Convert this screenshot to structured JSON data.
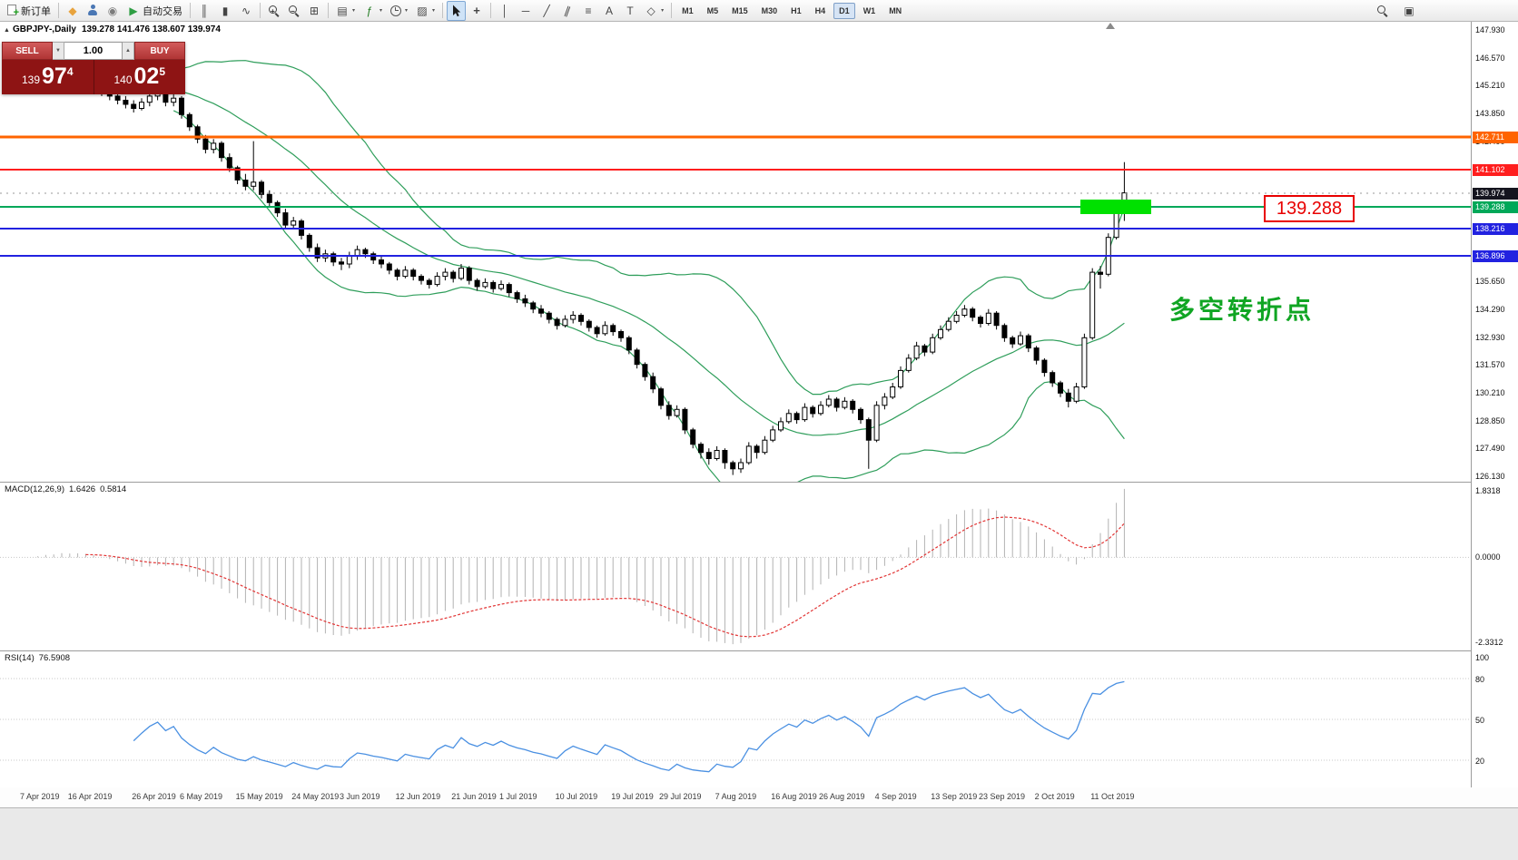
{
  "toolbar": {
    "items": [
      {
        "name": "new-order-button",
        "type": "button",
        "icon": "new-order-icon",
        "cls": "ico-neworder",
        "label": "新订单"
      },
      {
        "type": "sep"
      },
      {
        "name": "mql5-community-icon",
        "glyph": "◆",
        "color": "#e8a33d"
      },
      {
        "name": "profile-icon",
        "cls": "ico-person"
      },
      {
        "name": "news-icon",
        "glyph": "◉",
        "color": "#7d7d7d"
      },
      {
        "name": "autotrading-button",
        "type": "button",
        "glyph": "▶",
        "color": "#2f9e44",
        "label": "自动交易"
      },
      {
        "type": "sep"
      },
      {
        "name": "bar-chart-icon",
        "glyph": "║"
      },
      {
        "name": "candlestick-chart-icon",
        "glyph": "▮"
      },
      {
        "name": "line-chart-icon",
        "glyph": "∿"
      },
      {
        "type": "sep"
      },
      {
        "name": "zoom-in-icon",
        "cls": "ico-mag",
        "glyph": "+"
      },
      {
        "name": "zoom-out-icon",
        "cls": "ico-mag",
        "glyph": "−"
      },
      {
        "name": "tile-windows-icon",
        "glyph": "⊞"
      },
      {
        "type": "sep"
      },
      {
        "name": "templates-icon",
        "glyph": "▤",
        "caret": true
      },
      {
        "name": "indicators-icon",
        "glyph": "ƒ",
        "color": "#1f7a1f",
        "caret": true
      },
      {
        "name": "periods-icon",
        "cls": "ico-clock",
        "caret": true
      },
      {
        "name": "snapshot-icon",
        "glyph": "▨",
        "caret": true
      },
      {
        "type": "sep"
      },
      {
        "name": "cursor-icon",
        "svg": "cursor",
        "active": true
      },
      {
        "name": "crosshair-icon",
        "glyph": "+",
        "bold": true
      },
      {
        "type": "sep"
      },
      {
        "name": "vertical-line-icon",
        "glyph": "│"
      },
      {
        "name": "horizontal-line-icon",
        "glyph": "─"
      },
      {
        "name": "trendline-icon",
        "glyph": "╱"
      },
      {
        "name": "channel-icon",
        "glyph": "∥",
        "cls": "ico-rot"
      },
      {
        "name": "fibonacci-icon",
        "glyph": "≡"
      },
      {
        "name": "text-icon",
        "glyph": "A"
      },
      {
        "name": "label-icon",
        "glyph": "T"
      },
      {
        "name": "shapes-icon",
        "glyph": "◇",
        "caret": true
      },
      {
        "type": "sep"
      }
    ],
    "timeframes": [
      "M1",
      "M5",
      "M15",
      "M30",
      "H1",
      "H4",
      "D1",
      "W1",
      "MN"
    ],
    "active_timeframe": "D1",
    "right_items": [
      {
        "name": "search-icon",
        "cls": "ico-mag"
      },
      {
        "name": "data-window-icon",
        "glyph": "▣"
      }
    ]
  },
  "symbol_bar": {
    "marker": "▲",
    "symbol": "GBPJPY-,Daily",
    "ohlc": "139.278 141.476 138.607 139.974"
  },
  "trade_panel": {
    "sell": "SELL",
    "buy": "BUY",
    "volume": "1.00",
    "vol_down_glyph": "▼",
    "vol_up_glyph": "▲",
    "bid": {
      "prefix": "139",
      "big": "97",
      "sup": "4"
    },
    "ask": {
      "prefix": "140",
      "big": "02",
      "sup": "5"
    }
  },
  "levels": [
    {
      "price": 142.711,
      "label": "142.711",
      "color": "#ff6400",
      "width": 3
    },
    {
      "price": 141.102,
      "label": "141.102",
      "color": "#ff1e1e",
      "width": 2
    },
    {
      "price": 139.288,
      "label": "139.288",
      "color": "#00a859",
      "width": 2
    },
    {
      "price": 138.216,
      "label": "138.216",
      "color": "#2222e0",
      "width": 2
    },
    {
      "price": 136.896,
      "label": "136.896",
      "color": "#2222e0",
      "width": 2
    }
  ],
  "current_price": {
    "value": 139.974,
    "label": "139.974",
    "bg": "#15151f"
  },
  "y_ticks": [
    "147.930",
    "146.570",
    "145.210",
    "143.850",
    "142.490",
    "135.650",
    "134.290",
    "132.930",
    "131.570",
    "130.210",
    "128.850",
    "127.490",
    "126.130"
  ],
  "x_labels": [
    {
      "t": "7 Apr 2019",
      "bar": 0
    },
    {
      "t": "16 Apr 2019",
      "bar": 6
    },
    {
      "t": "26 Apr 2019",
      "bar": 14
    },
    {
      "t": "6 May 2019",
      "bar": 20
    },
    {
      "t": "15 May 2019",
      "bar": 27
    },
    {
      "t": "24 May 2019",
      "bar": 34
    },
    {
      "t": "3 Jun 2019",
      "bar": 40
    },
    {
      "t": "12 Jun 2019",
      "bar": 47
    },
    {
      "t": "21 Jun 2019",
      "bar": 54
    },
    {
      "t": "1 Jul 2019",
      "bar": 60
    },
    {
      "t": "10 Jul 2019",
      "bar": 67
    },
    {
      "t": "19 Jul 2019",
      "bar": 74
    },
    {
      "t": "29 Jul 2019",
      "bar": 80
    },
    {
      "t": "7 Aug 2019",
      "bar": 87
    },
    {
      "t": "16 Aug 2019",
      "bar": 94
    },
    {
      "t": "26 Aug 2019",
      "bar": 100
    },
    {
      "t": "4 Sep 2019",
      "bar": 107
    },
    {
      "t": "13 Sep 2019",
      "bar": 114
    },
    {
      "t": "23 Sep 2019",
      "bar": 120
    },
    {
      "t": "2 Oct 2019",
      "bar": 127
    },
    {
      "t": "11 Oct 2019",
      "bar": 134
    }
  ],
  "annotations": {
    "price_note": "139.288",
    "turning_point": "多空转折点"
  },
  "macd_panel": {
    "label": "MACD(12,26,9)",
    "value_main": "1.6426",
    "value_signal": "0.5814",
    "scale": [
      "1.8318",
      "0.0000",
      "-2.3312"
    ]
  },
  "rsi_panel": {
    "label": "RSI(14)",
    "value": "76.5908",
    "levels": [
      100,
      80,
      50,
      20
    ]
  },
  "chart_data": {
    "type": "candlestick",
    "symbol": "GBPJPY-",
    "timeframe": "Daily",
    "y_range": [
      125.87,
      148.33
    ],
    "overlays": {
      "bollinger_period": 20,
      "bollinger_dev": 2
    },
    "macd_params": [
      12,
      26,
      9
    ],
    "rsi_period": 14,
    "candles": [
      [
        145.0,
        145.4,
        144.8,
        145.2
      ],
      [
        145.2,
        145.7,
        145.0,
        145.5
      ],
      [
        145.5,
        145.6,
        145.1,
        145.3
      ],
      [
        145.3,
        145.9,
        145.2,
        145.7
      ],
      [
        145.7,
        145.9,
        145.3,
        145.5
      ],
      [
        145.5,
        146.0,
        145.4,
        145.8
      ],
      [
        145.8,
        145.9,
        145.2,
        145.4
      ],
      [
        145.4,
        145.8,
        145.2,
        145.6
      ],
      [
        145.6,
        145.7,
        145.1,
        145.3
      ],
      [
        145.3,
        145.5,
        144.9,
        145.1
      ],
      [
        145.1,
        145.2,
        144.7,
        144.9
      ],
      [
        144.9,
        145.1,
        144.5,
        144.7
      ],
      [
        144.7,
        144.9,
        144.3,
        144.5
      ],
      [
        144.5,
        144.7,
        144.1,
        144.3
      ],
      [
        144.3,
        144.5,
        143.9,
        144.1
      ],
      [
        144.1,
        144.6,
        144.0,
        144.4
      ],
      [
        144.4,
        144.9,
        144.2,
        144.7
      ],
      [
        144.7,
        145.1,
        144.5,
        144.9
      ],
      [
        144.9,
        145.0,
        144.2,
        144.4
      ],
      [
        144.4,
        144.8,
        144.2,
        144.6
      ],
      [
        144.6,
        144.7,
        143.6,
        143.8
      ],
      [
        143.8,
        143.9,
        143.0,
        143.2
      ],
      [
        143.2,
        143.3,
        142.4,
        142.6
      ],
      [
        142.6,
        142.8,
        141.9,
        142.1
      ],
      [
        142.1,
        142.6,
        141.9,
        142.4
      ],
      [
        142.4,
        142.5,
        141.5,
        141.7
      ],
      [
        141.7,
        141.9,
        141.0,
        141.2
      ],
      [
        141.2,
        141.3,
        140.4,
        140.6
      ],
      [
        140.6,
        140.9,
        140.1,
        140.3
      ],
      [
        140.3,
        142.5,
        140.1,
        140.5
      ],
      [
        140.5,
        140.6,
        139.7,
        139.9
      ],
      [
        139.9,
        140.1,
        139.3,
        139.5
      ],
      [
        139.5,
        139.6,
        138.8,
        139.0
      ],
      [
        139.0,
        139.2,
        138.2,
        138.4
      ],
      [
        138.4,
        138.8,
        138.2,
        138.6
      ],
      [
        138.6,
        138.7,
        137.7,
        137.9
      ],
      [
        137.9,
        138.0,
        137.1,
        137.3
      ],
      [
        137.3,
        137.5,
        136.6,
        136.8
      ],
      [
        136.8,
        137.2,
        136.6,
        137.0
      ],
      [
        137.0,
        137.1,
        136.4,
        136.6
      ],
      [
        136.6,
        136.8,
        136.2,
        136.5
      ],
      [
        136.5,
        137.1,
        136.3,
        136.9
      ],
      [
        136.9,
        137.4,
        136.7,
        137.2
      ],
      [
        137.2,
        137.3,
        136.8,
        137.0
      ],
      [
        137.0,
        137.1,
        136.5,
        136.7
      ],
      [
        136.7,
        136.9,
        136.3,
        136.5
      ],
      [
        136.5,
        136.6,
        136.0,
        136.2
      ],
      [
        136.2,
        136.3,
        135.7,
        135.9
      ],
      [
        135.9,
        136.4,
        135.8,
        136.2
      ],
      [
        136.2,
        136.3,
        135.7,
        135.9
      ],
      [
        135.9,
        136.0,
        135.5,
        135.7
      ],
      [
        135.7,
        135.8,
        135.3,
        135.5
      ],
      [
        135.5,
        136.1,
        135.4,
        135.9
      ],
      [
        135.9,
        136.3,
        135.7,
        136.1
      ],
      [
        136.1,
        136.2,
        135.6,
        135.8
      ],
      [
        135.8,
        136.5,
        135.7,
        136.3
      ],
      [
        136.3,
        136.4,
        135.5,
        135.7
      ],
      [
        135.7,
        135.8,
        135.2,
        135.4
      ],
      [
        135.4,
        135.8,
        135.3,
        135.6
      ],
      [
        135.6,
        135.7,
        135.1,
        135.3
      ],
      [
        135.3,
        135.7,
        135.2,
        135.5
      ],
      [
        135.5,
        135.6,
        134.9,
        135.1
      ],
      [
        135.1,
        135.2,
        134.6,
        134.8
      ],
      [
        134.8,
        135.0,
        134.4,
        134.6
      ],
      [
        134.6,
        134.7,
        134.1,
        134.3
      ],
      [
        134.3,
        134.5,
        133.9,
        134.1
      ],
      [
        134.1,
        134.2,
        133.6,
        133.8
      ],
      [
        133.8,
        133.9,
        133.3,
        133.5
      ],
      [
        133.5,
        134.0,
        133.4,
        133.8
      ],
      [
        133.8,
        134.2,
        133.6,
        134.0
      ],
      [
        134.0,
        134.1,
        133.5,
        133.7
      ],
      [
        133.7,
        133.8,
        133.2,
        133.4
      ],
      [
        133.4,
        133.5,
        132.9,
        133.1
      ],
      [
        133.1,
        133.7,
        133.0,
        133.5
      ],
      [
        133.5,
        133.6,
        133.0,
        133.2
      ],
      [
        133.2,
        133.3,
        132.7,
        132.9
      ],
      [
        132.9,
        133.0,
        132.1,
        132.3
      ],
      [
        132.3,
        132.4,
        131.4,
        131.6
      ],
      [
        131.6,
        131.7,
        130.8,
        131.0
      ],
      [
        131.0,
        131.2,
        130.2,
        130.4
      ],
      [
        130.4,
        130.5,
        129.4,
        129.6
      ],
      [
        129.6,
        129.8,
        128.9,
        129.1
      ],
      [
        129.1,
        129.6,
        129.0,
        129.4
      ],
      [
        129.4,
        129.5,
        128.2,
        128.4
      ],
      [
        128.4,
        128.5,
        127.5,
        127.7
      ],
      [
        127.7,
        127.8,
        127.0,
        127.3
      ],
      [
        127.3,
        127.5,
        126.7,
        127.0
      ],
      [
        127.0,
        127.6,
        126.9,
        127.4
      ],
      [
        127.4,
        127.5,
        126.5,
        126.8
      ],
      [
        126.8,
        126.9,
        126.2,
        126.5
      ],
      [
        126.5,
        127.0,
        126.3,
        126.8
      ],
      [
        126.8,
        127.8,
        126.7,
        127.6
      ],
      [
        127.6,
        127.7,
        127.0,
        127.3
      ],
      [
        127.3,
        128.1,
        127.2,
        127.9
      ],
      [
        127.9,
        128.6,
        127.8,
        128.4
      ],
      [
        128.4,
        129.0,
        128.3,
        128.8
      ],
      [
        128.8,
        129.4,
        128.7,
        129.2
      ],
      [
        129.2,
        129.3,
        128.7,
        128.9
      ],
      [
        128.9,
        129.7,
        128.8,
        129.5
      ],
      [
        129.5,
        129.6,
        129.0,
        129.2
      ],
      [
        129.2,
        129.8,
        129.1,
        129.6
      ],
      [
        129.6,
        130.1,
        129.5,
        129.9
      ],
      [
        129.9,
        130.0,
        129.3,
        129.5
      ],
      [
        129.5,
        130.0,
        129.4,
        129.8
      ],
      [
        129.8,
        129.9,
        129.2,
        129.4
      ],
      [
        129.4,
        129.5,
        128.7,
        128.9
      ],
      [
        128.9,
        129.0,
        126.5,
        127.9
      ],
      [
        127.9,
        129.8,
        127.8,
        129.6
      ],
      [
        129.6,
        130.2,
        129.4,
        130.0
      ],
      [
        130.0,
        130.7,
        129.9,
        130.5
      ],
      [
        130.5,
        131.5,
        130.4,
        131.3
      ],
      [
        131.3,
        132.1,
        131.2,
        131.9
      ],
      [
        131.9,
        132.7,
        131.8,
        132.5
      ],
      [
        132.5,
        132.6,
        132.0,
        132.2
      ],
      [
        132.2,
        133.1,
        132.1,
        132.9
      ],
      [
        132.9,
        133.5,
        132.8,
        133.3
      ],
      [
        133.3,
        133.9,
        133.2,
        133.7
      ],
      [
        133.7,
        134.2,
        133.6,
        134.0
      ],
      [
        134.0,
        134.5,
        133.9,
        134.3
      ],
      [
        134.3,
        134.4,
        133.7,
        133.9
      ],
      [
        133.9,
        134.0,
        133.4,
        133.6
      ],
      [
        133.6,
        134.3,
        133.5,
        134.1
      ],
      [
        134.1,
        134.2,
        133.3,
        133.5
      ],
      [
        133.5,
        133.6,
        132.7,
        132.9
      ],
      [
        132.9,
        133.0,
        132.4,
        132.6
      ],
      [
        132.6,
        133.2,
        132.5,
        133.0
      ],
      [
        133.0,
        133.1,
        132.2,
        132.4
      ],
      [
        132.4,
        132.5,
        131.6,
        131.8
      ],
      [
        131.8,
        131.9,
        131.0,
        131.2
      ],
      [
        131.2,
        131.3,
        130.5,
        130.7
      ],
      [
        130.7,
        130.8,
        130.0,
        130.2
      ],
      [
        130.2,
        130.4,
        129.5,
        129.8
      ],
      [
        129.8,
        130.7,
        129.7,
        130.5
      ],
      [
        130.5,
        133.1,
        130.4,
        132.9
      ],
      [
        132.9,
        136.3,
        132.8,
        136.1
      ],
      [
        136.1,
        136.4,
        135.3,
        136.0
      ],
      [
        136.0,
        138.0,
        135.9,
        137.8
      ],
      [
        137.8,
        139.5,
        137.7,
        139.28
      ],
      [
        139.278,
        141.476,
        138.607,
        139.974
      ]
    ]
  }
}
